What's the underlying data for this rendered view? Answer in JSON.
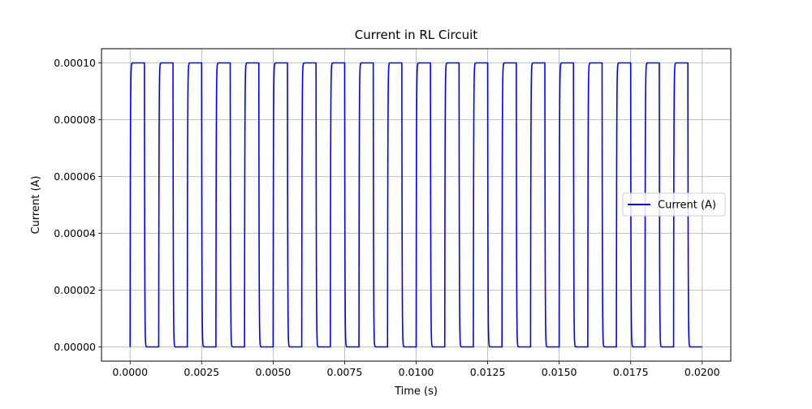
{
  "chart_data": {
    "type": "line",
    "title": "Current in RL Circuit",
    "xlabel": "Time (s)",
    "ylabel": "Current (A)",
    "xlim": [
      -0.001,
      0.021
    ],
    "ylim": [
      -5e-06,
      0.000105
    ],
    "x_ticks": [
      0.0,
      0.0025,
      0.005,
      0.0075,
      0.01,
      0.0125,
      0.015,
      0.0175,
      0.02
    ],
    "x_tick_labels": [
      "0.0000",
      "0.0025",
      "0.0050",
      "0.0075",
      "0.0100",
      "0.0125",
      "0.0150",
      "0.0175",
      "0.0200"
    ],
    "y_ticks": [
      0.0,
      2e-05,
      4e-05,
      6e-05,
      8e-05,
      0.0001
    ],
    "y_tick_labels": [
      "0.00000",
      "0.00002",
      "0.00004",
      "0.00006",
      "0.00008",
      "0.00010"
    ],
    "grid": true,
    "legend_position": "center-right",
    "series": [
      {
        "name": "Current (A)",
        "color": "#0000ff",
        "waveform": "square-wave RL response",
        "period": 0.001,
        "duty_cycle": 0.5,
        "high_value": 0.0001,
        "low_value": 0.0,
        "time_constant": 1e-05,
        "t_start": 0.0,
        "t_end": 0.02
      }
    ]
  }
}
